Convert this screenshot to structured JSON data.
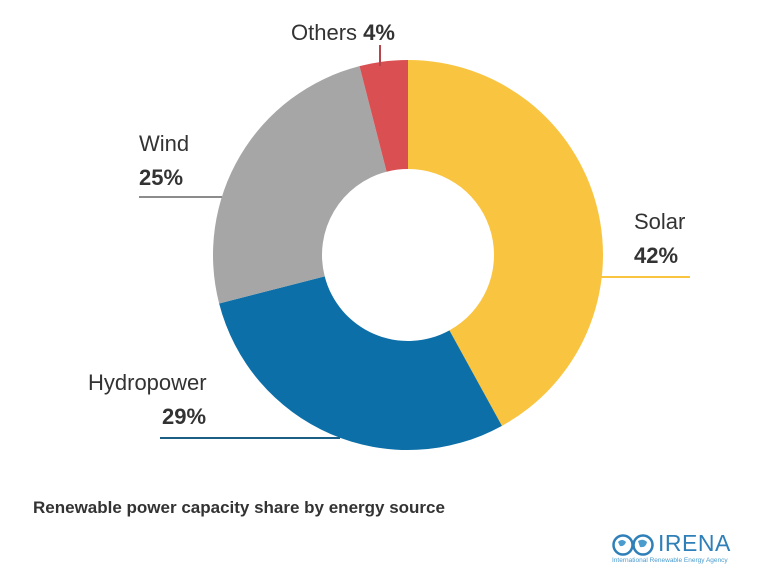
{
  "chart_data": {
    "type": "pie",
    "subtype": "donut",
    "title": "Renewable power capacity share by energy source",
    "categories": [
      "Solar",
      "Hydropower",
      "Wind",
      "Others"
    ],
    "values": [
      42,
      29,
      25,
      4
    ],
    "unit": "%",
    "colors": {
      "Solar": "#f9c440",
      "Hydropower": "#0d6fa8",
      "Wind": "#a6a6a6",
      "Others": "#d94f52"
    },
    "labels": {
      "solar": {
        "name": "Solar",
        "pct": "42%"
      },
      "hydropower": {
        "name": "Hydropower",
        "pct": "29%"
      },
      "wind": {
        "name": "Wind",
        "pct": "25%"
      },
      "others": {
        "name": "Others",
        "pct": "4%"
      }
    },
    "legend": "none (direct labels)",
    "start_angle": "12 o'clock, clockwise"
  },
  "caption": "Renewable power capacity share by energy source",
  "logo": {
    "name": "IRENA",
    "subtitle": "International Renewable Energy Agency"
  }
}
